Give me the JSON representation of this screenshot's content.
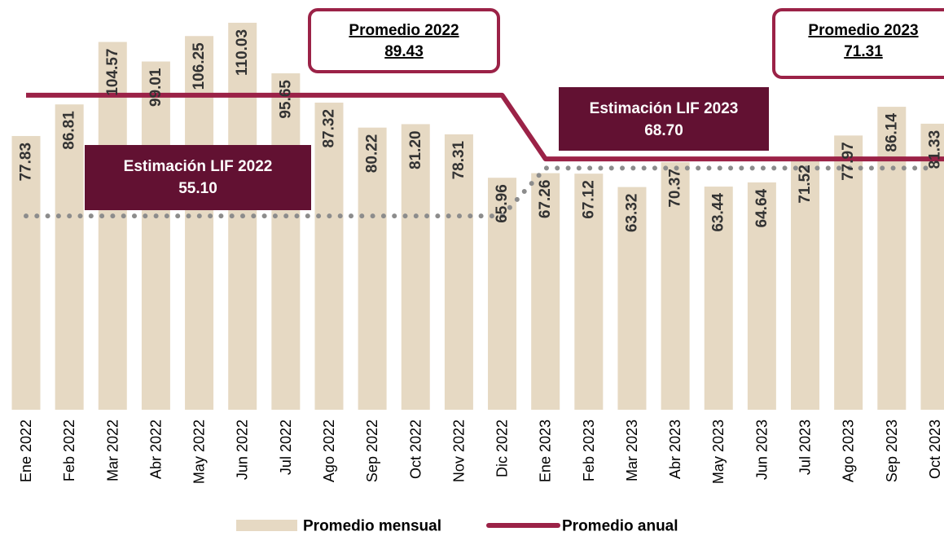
{
  "chart_data": {
    "type": "bar",
    "categories": [
      "Ene 2022",
      "Feb 2022",
      "Mar 2022",
      "Abr 2022",
      "May 2022",
      "Jun 2022",
      "Jul 2022",
      "Ago 2022",
      "Sep 2022",
      "Oct 2022",
      "Nov 2022",
      "Dic 2022",
      "Ene 2023",
      "Feb 2023",
      "Mar 2023",
      "Abr 2023",
      "May 2023",
      "Jun 2023",
      "Jul 2023",
      "Ago 2023",
      "Sep 2023",
      "Oct 2023"
    ],
    "ylim": [
      0,
      116.5
    ],
    "series": [
      {
        "name": "Promedio mensual",
        "type": "bar",
        "color": "#e6d9c3",
        "values": [
          77.83,
          86.81,
          104.57,
          99.01,
          106.25,
          110.03,
          95.65,
          87.32,
          80.22,
          81.2,
          78.31,
          65.96,
          67.26,
          67.12,
          63.32,
          70.37,
          63.44,
          64.64,
          71.52,
          77.97,
          86.14,
          81.33
        ],
        "value_labels": [
          "77.83",
          "86.81",
          "104.57",
          "99.01",
          "106.25",
          "110.03",
          "95.65",
          "87.32",
          "80.22",
          "81.20",
          "78.31",
          "65.96",
          "67.26",
          "67.12",
          "63.32",
          "70.37",
          "63.44",
          "64.64",
          "71.52",
          "77.97",
          "86.14",
          "81.33"
        ]
      },
      {
        "name": "Promedio anual",
        "type": "line",
        "color": "#9b2247",
        "values": [
          89.43,
          89.43,
          89.43,
          89.43,
          89.43,
          89.43,
          89.43,
          89.43,
          89.43,
          89.43,
          89.43,
          89.43,
          71.31,
          71.31,
          71.31,
          71.31,
          71.31,
          71.31,
          71.31,
          71.31,
          71.31,
          71.31
        ]
      },
      {
        "type": "dotted",
        "color": "#8c8c8c",
        "values": [
          55.1,
          55.1,
          55.1,
          55.1,
          55.1,
          55.1,
          55.1,
          55.1,
          55.1,
          55.1,
          55.1,
          55.1,
          68.7,
          68.7,
          68.7,
          68.7,
          68.7,
          68.7,
          68.7,
          68.7,
          68.7,
          68.7
        ]
      }
    ],
    "annotations": [
      {
        "text": "Promedio 2022",
        "value": "89.43",
        "style": "outline"
      },
      {
        "text": "Promedio 2023",
        "value": "71.31",
        "style": "outline"
      },
      {
        "text": "Estimación LIF 2022",
        "value": "55.10",
        "style": "filled"
      },
      {
        "text": "Estimación LIF 2023",
        "value": "68.70",
        "style": "filled"
      }
    ]
  }
}
